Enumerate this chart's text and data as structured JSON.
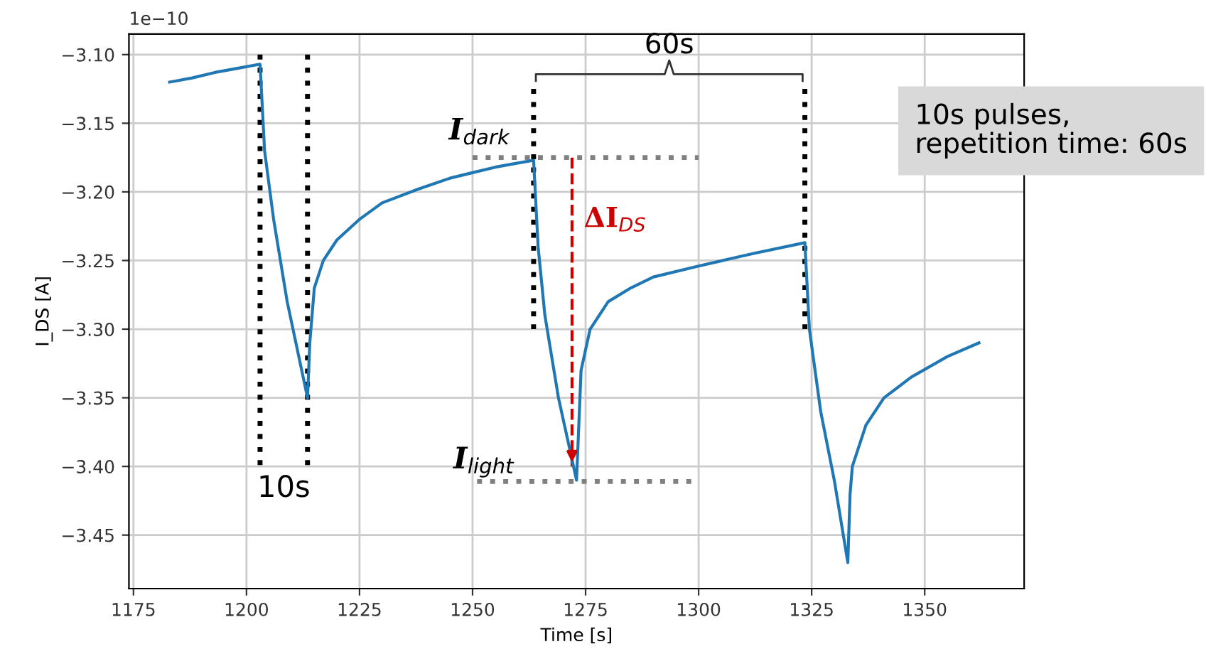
{
  "chart_data": {
    "type": "line",
    "xlabel": "Time [s]",
    "ylabel": "I_DS [A]",
    "xlim": [
      1174,
      1372
    ],
    "ylim": [
      -3.489,
      -3.085
    ],
    "xticks": [
      1175,
      1200,
      1225,
      1250,
      1275,
      1300,
      1325,
      1350
    ],
    "yticks": [
      {
        "value": -3.1,
        "label": "−3.10"
      },
      {
        "value": -3.15,
        "label": "−3.15"
      },
      {
        "value": -3.2,
        "label": "−3.20"
      },
      {
        "value": -3.25,
        "label": "−3.25"
      },
      {
        "value": -3.3,
        "label": "−3.30"
      },
      {
        "value": -3.35,
        "label": "−3.35"
      },
      {
        "value": -3.4,
        "label": "−3.40"
      },
      {
        "value": -3.45,
        "label": "−3.45"
      }
    ],
    "grid": true,
    "marker": "none",
    "series": [
      {
        "color": "#1f77b4",
        "line_style": "solid",
        "x": [
          1183,
          1188,
          1193,
          1198,
          1203,
          1204,
          1206,
          1209,
          1213.5,
          1214,
          1215,
          1217,
          1220,
          1225,
          1230,
          1238,
          1245,
          1250,
          1255,
          1260,
          1263.5,
          1264.5,
          1266,
          1269,
          1273,
          1273.5,
          1274,
          1276,
          1280,
          1285,
          1290,
          1300,
          1312,
          1323.5,
          1324.5,
          1327,
          1330,
          1333,
          1333.5,
          1334,
          1337,
          1341,
          1347,
          1355,
          1362
        ],
        "values": [
          -3.12,
          -3.117,
          -3.113,
          -3.11,
          -3.107,
          -3.17,
          -3.22,
          -3.28,
          -3.35,
          -3.31,
          -3.27,
          -3.25,
          -3.235,
          -3.22,
          -3.208,
          -3.198,
          -3.19,
          -3.186,
          -3.182,
          -3.179,
          -3.177,
          -3.24,
          -3.29,
          -3.35,
          -3.41,
          -3.37,
          -3.33,
          -3.3,
          -3.28,
          -3.27,
          -3.262,
          -3.254,
          -3.245,
          -3.237,
          -3.3,
          -3.36,
          -3.41,
          -3.47,
          -3.42,
          -3.4,
          -3.37,
          -3.35,
          -3.335,
          -3.32,
          -3.31
        ]
      },
      {
        "color": "#000000",
        "line_style": "dotted",
        "x": [
          1203,
          1203
        ],
        "values": [
          -3.1,
          -3.4
        ]
      },
      {
        "color": "#000000",
        "line_style": "dotted",
        "x": [
          1213.5,
          1213.5
        ],
        "values": [
          -3.1,
          -3.4
        ]
      },
      {
        "color": "#000000",
        "line_style": "dotted",
        "x": [
          1263.5,
          1263.5
        ],
        "values": [
          -3.125,
          -3.3
        ]
      },
      {
        "color": "#000000",
        "line_style": "dotted",
        "x": [
          1323.5,
          1323.5
        ],
        "values": [
          -3.125,
          -3.3
        ]
      },
      {
        "color": "#808080",
        "line_style": "dotted",
        "x": [
          1250,
          1300
        ],
        "values": [
          -3.175,
          -3.175
        ]
      },
      {
        "color": "#808080",
        "line_style": "dotted",
        "x": [
          1251,
          1300
        ],
        "values": [
          -3.411,
          -3.411
        ]
      },
      {
        "color": "#cc0000",
        "line_style": "dashed",
        "x": [
          1272,
          1272
        ],
        "values": [
          -3.175,
          -3.4
        ]
      }
    ],
    "annotations": [
      "1e−10",
      "10s",
      "I$_{dark}$",
      "I$_{light}$",
      "ΔI$_{DS}$",
      "60s",
      "10s pulses,\nrepetition time: 60s"
    ]
  }
}
